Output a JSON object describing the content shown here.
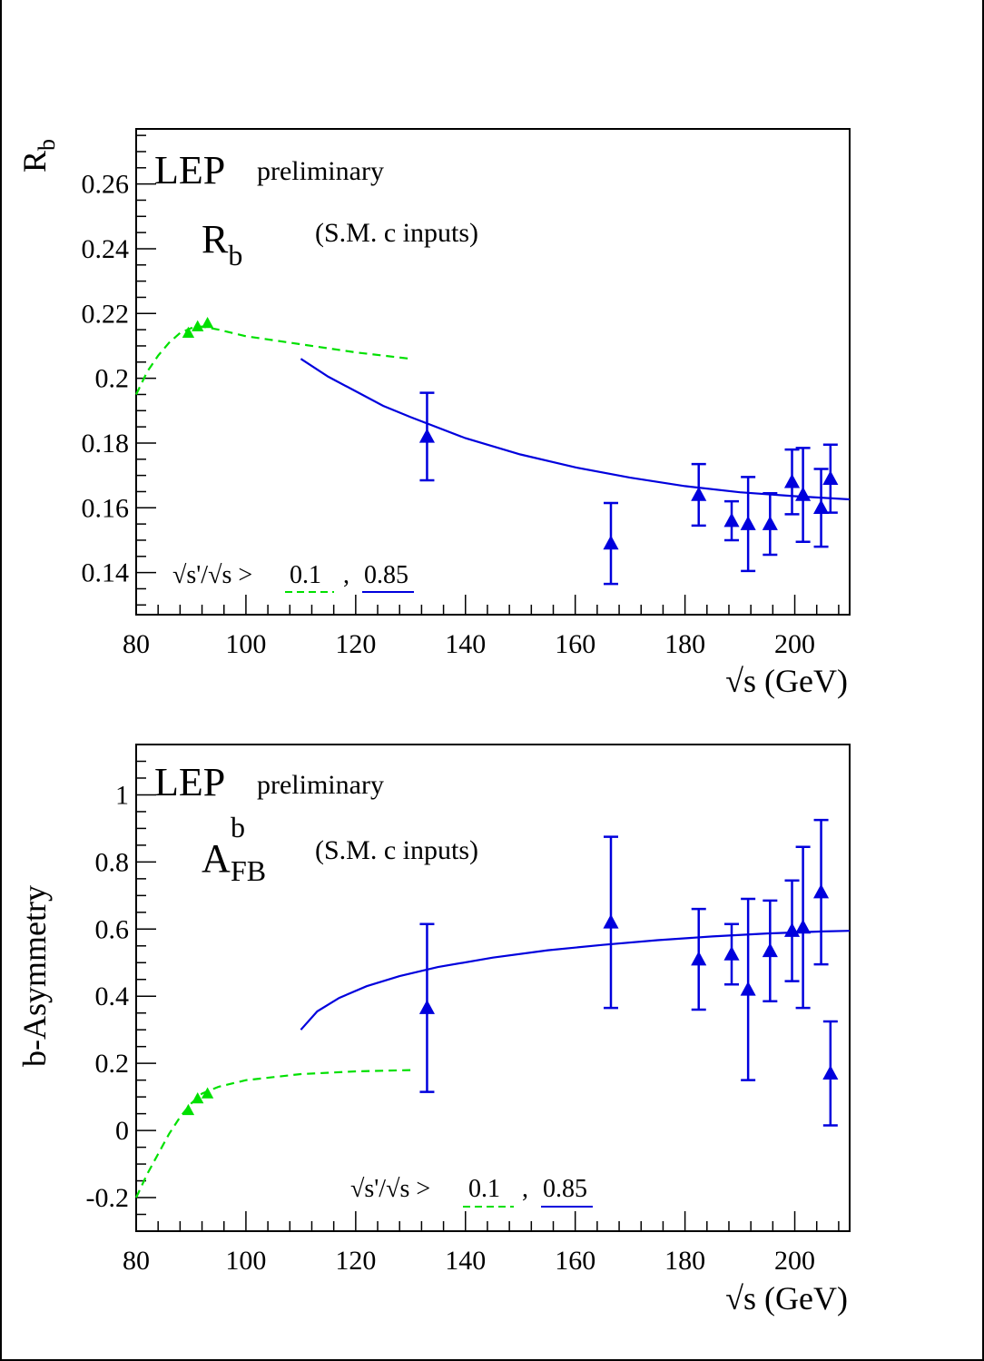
{
  "colors": {
    "low_energy": "#00e000",
    "high_energy": "#0000dd",
    "axis": "#000000"
  },
  "chart_data": [
    {
      "type": "scatter",
      "title": "LEP",
      "subtitle": "preliminary",
      "quantity_main": "R",
      "quantity_sub": "b",
      "inputs_note": "(S.M. c inputs)",
      "ylabel_main": "R",
      "ylabel_sub": "b",
      "xlabel": "√s  (GeV)",
      "xlim": [
        80,
        210
      ],
      "ylim": [
        0.127,
        0.277
      ],
      "x_ticks": [
        80,
        100,
        120,
        140,
        160,
        180,
        200
      ],
      "y_ticks": [
        0.14,
        0.16,
        0.18,
        0.2,
        0.22,
        0.24,
        0.26
      ],
      "y_tick_labels": [
        "0.14",
        "0.16",
        "0.18",
        "0.2",
        "0.22",
        "0.24",
        "0.26"
      ],
      "cut_note": {
        "text": "√s'/√s >",
        "low": "0.1",
        "sep": ",",
        "high": "0.85"
      },
      "series": [
        {
          "cut": "0.1",
          "color": "#00e000",
          "line_style": "dashed",
          "curve": [
            [
              80,
              0.195
            ],
            [
              82,
              0.202
            ],
            [
              84,
              0.207
            ],
            [
              86,
              0.211
            ],
            [
              88,
              0.214
            ],
            [
              90,
              0.2155
            ],
            [
              92,
              0.216
            ],
            [
              95,
              0.215
            ],
            [
              100,
              0.213
            ],
            [
              110,
              0.2105
            ],
            [
              120,
              0.208
            ],
            [
              130,
              0.206
            ]
          ],
          "points": [
            {
              "x": 89.5,
              "y": 0.214,
              "err": 0.0008
            },
            {
              "x": 91.2,
              "y": 0.216,
              "err": 0.0007
            },
            {
              "x": 93.0,
              "y": 0.217,
              "err": 0.0008
            }
          ]
        },
        {
          "cut": "0.85",
          "color": "#0000dd",
          "line_style": "solid",
          "curve": [
            [
              110,
              0.206
            ],
            [
              115,
              0.2005
            ],
            [
              120,
              0.196
            ],
            [
              125,
              0.1915
            ],
            [
              130,
              0.188
            ],
            [
              140,
              0.1815
            ],
            [
              150,
              0.1765
            ],
            [
              160,
              0.1725
            ],
            [
              170,
              0.1693
            ],
            [
              180,
              0.1667
            ],
            [
              190,
              0.1648
            ],
            [
              200,
              0.1636
            ],
            [
              210,
              0.1626
            ]
          ],
          "points": [
            {
              "x": 133,
              "y": 0.182,
              "err": 0.0135
            },
            {
              "x": 166.5,
              "y": 0.149,
              "err": 0.0125
            },
            {
              "x": 182.5,
              "y": 0.164,
              "err": 0.0095
            },
            {
              "x": 188.5,
              "y": 0.156,
              "err": 0.006
            },
            {
              "x": 191.5,
              "y": 0.155,
              "err": 0.0145
            },
            {
              "x": 195.5,
              "y": 0.155,
              "err": 0.0095
            },
            {
              "x": 199.5,
              "y": 0.168,
              "err": 0.01
            },
            {
              "x": 201.5,
              "y": 0.164,
              "err": 0.0145
            },
            {
              "x": 204.8,
              "y": 0.16,
              "err": 0.012
            },
            {
              "x": 206.5,
              "y": 0.169,
              "err": 0.0105
            }
          ]
        }
      ]
    },
    {
      "type": "scatter",
      "title": "LEP",
      "subtitle": "preliminary",
      "quantity_main": "A",
      "quantity_sub": "FB",
      "quantity_sup": "b",
      "inputs_note": "(S.M. c inputs)",
      "ylabel": "b-Asymmetry",
      "xlabel": "√s  (GeV)",
      "xlim": [
        80,
        210
      ],
      "ylim": [
        -0.3,
        1.15
      ],
      "x_ticks": [
        80,
        100,
        120,
        140,
        160,
        180,
        200
      ],
      "y_ticks": [
        -0.2,
        0,
        0.2,
        0.4,
        0.6,
        0.8,
        1
      ],
      "y_tick_labels": [
        "-0.2",
        "0",
        "0.2",
        "0.4",
        "0.6",
        "0.8",
        "1"
      ],
      "cut_note": {
        "text": "√s'/√s >",
        "low": "0.1",
        "sep": ",",
        "high": "0.85"
      },
      "series": [
        {
          "cut": "0.1",
          "color": "#00e000",
          "line_style": "dashed",
          "curve": [
            [
              80,
              -0.2
            ],
            [
              82,
              -0.13
            ],
            [
              84,
              -0.07
            ],
            [
              86,
              -0.01
            ],
            [
              88,
              0.04
            ],
            [
              90,
              0.08
            ],
            [
              92,
              0.11
            ],
            [
              95,
              0.13
            ],
            [
              100,
              0.15
            ],
            [
              110,
              0.168
            ],
            [
              120,
              0.176
            ],
            [
              130,
              0.18
            ]
          ],
          "points": [
            {
              "x": 89.5,
              "y": 0.06,
              "err": 0.008
            },
            {
              "x": 91.2,
              "y": 0.095,
              "err": 0.006
            },
            {
              "x": 93.0,
              "y": 0.11,
              "err": 0.008
            }
          ]
        },
        {
          "cut": "0.85",
          "color": "#0000dd",
          "line_style": "solid",
          "curve": [
            [
              110,
              0.3
            ],
            [
              113,
              0.355
            ],
            [
              117,
              0.395
            ],
            [
              122,
              0.43
            ],
            [
              128,
              0.46
            ],
            [
              135,
              0.487
            ],
            [
              145,
              0.515
            ],
            [
              155,
              0.537
            ],
            [
              165,
              0.553
            ],
            [
              175,
              0.567
            ],
            [
              185,
              0.578
            ],
            [
              195,
              0.587
            ],
            [
              205,
              0.593
            ],
            [
              210,
              0.595
            ]
          ],
          "points": [
            {
              "x": 133,
              "y": 0.365,
              "err": 0.25
            },
            {
              "x": 166.5,
              "y": 0.62,
              "err": 0.255
            },
            {
              "x": 182.5,
              "y": 0.51,
              "err": 0.15
            },
            {
              "x": 188.5,
              "y": 0.525,
              "err": 0.09
            },
            {
              "x": 191.5,
              "y": 0.42,
              "err": 0.27
            },
            {
              "x": 195.5,
              "y": 0.535,
              "err": 0.15
            },
            {
              "x": 199.5,
              "y": 0.595,
              "err": 0.15
            },
            {
              "x": 201.5,
              "y": 0.605,
              "err": 0.24
            },
            {
              "x": 204.8,
              "y": 0.71,
              "err": 0.215
            },
            {
              "x": 206.5,
              "y": 0.17,
              "err": 0.155
            }
          ]
        }
      ]
    }
  ]
}
